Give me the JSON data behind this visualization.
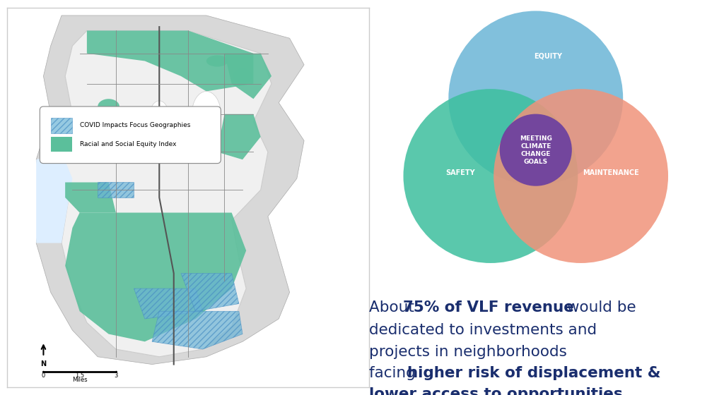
{
  "background_color": "#ffffff",
  "map_border_color": "#cccccc",
  "venn": {
    "equity": {
      "label": "EQUITY",
      "color": "#6bb5d6",
      "alpha": 0.85
    },
    "safety": {
      "label": "SAFETY",
      "color": "#3dbf9e",
      "alpha": 0.85
    },
    "maintenance": {
      "label": "MAINTENANCE",
      "color": "#f0937a",
      "alpha": 0.85
    },
    "center_label": "MEETING\nCLIMATE\nCHANGE\nGOALS",
    "center_color": "#6b3fa0"
  },
  "text_color": "#1a2e6e",
  "legend_covid_label": "COVID Impacts Focus Geographies",
  "legend_equity_label": "Racial and Social Equity Index",
  "map_green": "#5bbf9b",
  "map_blue_hatch": "#6ab4d6"
}
